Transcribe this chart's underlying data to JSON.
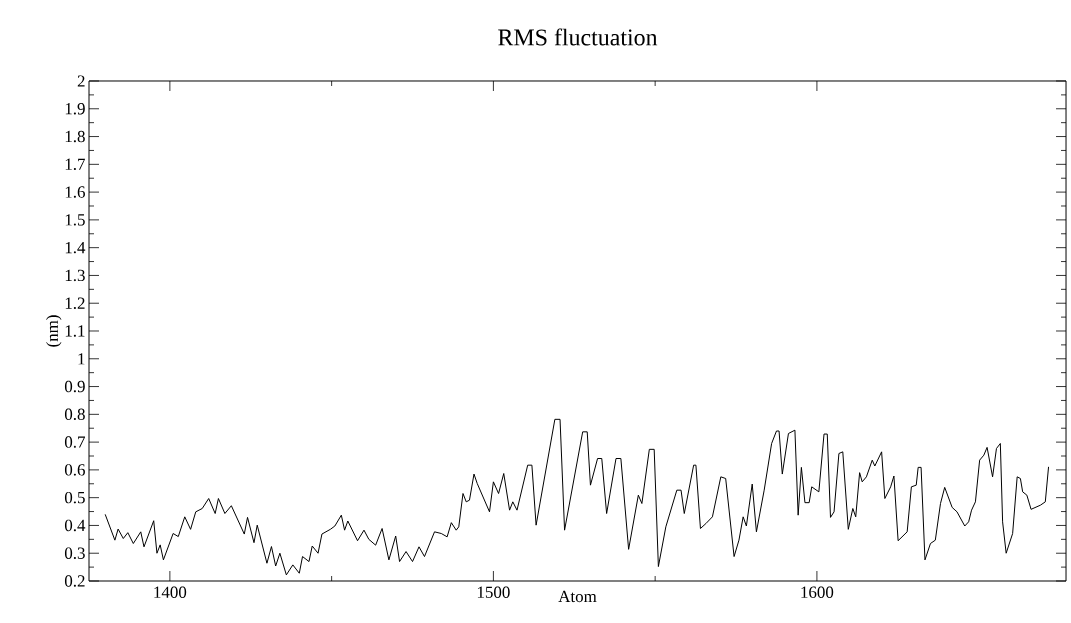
{
  "chart_data": {
    "type": "line",
    "title": "RMS fluctuation",
    "xlabel": "Atom",
    "ylabel": "(nm)",
    "color": "#000000",
    "marker": "none",
    "line_style": "solid",
    "grid": false,
    "xlim": [
      1375,
      1677
    ],
    "xticks": [
      1400,
      1500,
      1600
    ],
    "ylim": [
      0.2,
      2
    ],
    "yticks": [
      0.2,
      0.3,
      0.4,
      0.5,
      0.6,
      0.7,
      0.8,
      0.9,
      1,
      1.1,
      1.2,
      1.3,
      1.4,
      1.5,
      1.6,
      1.7,
      1.8,
      1.9,
      2
    ],
    "x": [
      1380,
      1383,
      1384,
      1385.6,
      1387,
      1388.7,
      1391,
      1392,
      1395,
      1396,
      1397,
      1398,
      1401,
      1402.6,
      1404.6,
      1406.4,
      1408,
      1410,
      1412,
      1414,
      1415,
      1417,
      1419,
      1423,
      1424,
      1426,
      1427,
      1430,
      1431.4,
      1432.7,
      1434,
      1436,
      1438,
      1440,
      1441,
      1443,
      1444,
      1445.8,
      1447,
      1449.6,
      1451,
      1453,
      1454,
      1455,
      1458,
      1460,
      1461.5,
      1463.6,
      1465.6,
      1467.7,
      1469.8,
      1471,
      1473,
      1475,
      1477,
      1478.7,
      1481.8,
      1483.9,
      1485.7,
      1487,
      1488.5,
      1489.3,
      1490.6,
      1491.6,
      1492.6,
      1494,
      1495,
      1498.8,
      1500,
      1501.6,
      1503.2,
      1505,
      1506,
      1507.3,
      1510.6,
      1511.9,
      1513.2,
      1519,
      1520.6,
      1522,
      1527.6,
      1529,
      1530,
      1532.2,
      1533.5,
      1535,
      1537.9,
      1539.4,
      1541.8,
      1544.8,
      1545.9,
      1548.2,
      1549.7,
      1551,
      1553.3,
      1556.7,
      1558,
      1559,
      1561.9,
      1562.6,
      1564,
      1565.7,
      1567.7,
      1570.3,
      1571.8,
      1574.4,
      1575.9,
      1577.2,
      1578.2,
      1580,
      1581.3,
      1583.7,
      1586,
      1587.5,
      1588.3,
      1589.3,
      1591.2,
      1593.2,
      1594.2,
      1595.2,
      1596.3,
      1597.6,
      1598.4,
      1600.6,
      1602.2,
      1603.2,
      1604.2,
      1605.3,
      1606.8,
      1608,
      1609.7,
      1611.1,
      1612,
      1613.2,
      1614,
      1615.3,
      1617.1,
      1617.9,
      1620,
      1621,
      1622.8,
      1623.8,
      1625.1,
      1627.9,
      1629.2,
      1630.7,
      1631.3,
      1632.2,
      1633.4,
      1635.1,
      1636.6,
      1638.2,
      1639.5,
      1641.8,
      1643.3,
      1645.7,
      1646.9,
      1647.8,
      1649,
      1650.3,
      1651.6,
      1652.6,
      1654.3,
      1655.5,
      1656.7,
      1657.4,
      1658.5,
      1660.5,
      1661.9,
      1662.9,
      1663.6,
      1664.9,
      1666.2,
      1669.1,
      1670.6,
      1671.6
    ],
    "values": [
      0.44,
      0.347,
      0.387,
      0.353,
      0.374,
      0.335,
      0.377,
      0.323,
      0.417,
      0.3,
      0.33,
      0.276,
      0.371,
      0.36,
      0.431,
      0.386,
      0.449,
      0.461,
      0.497,
      0.443,
      0.497,
      0.443,
      0.471,
      0.369,
      0.429,
      0.338,
      0.401,
      0.264,
      0.324,
      0.254,
      0.3,
      0.222,
      0.258,
      0.228,
      0.288,
      0.27,
      0.326,
      0.3,
      0.369,
      0.386,
      0.398,
      0.437,
      0.383,
      0.416,
      0.345,
      0.383,
      0.35,
      0.329,
      0.389,
      0.276,
      0.362,
      0.27,
      0.306,
      0.27,
      0.323,
      0.288,
      0.377,
      0.371,
      0.359,
      0.41,
      0.383,
      0.395,
      0.515,
      0.485,
      0.491,
      0.585,
      0.551,
      0.449,
      0.557,
      0.515,
      0.587,
      0.455,
      0.485,
      0.455,
      0.617,
      0.617,
      0.401,
      0.782,
      0.782,
      0.383,
      0.737,
      0.737,
      0.545,
      0.641,
      0.641,
      0.443,
      0.641,
      0.641,
      0.314,
      0.509,
      0.479,
      0.674,
      0.674,
      0.252,
      0.395,
      0.527,
      0.527,
      0.443,
      0.617,
      0.617,
      0.389,
      0.407,
      0.431,
      0.575,
      0.569,
      0.288,
      0.347,
      0.431,
      0.398,
      0.549,
      0.377,
      0.527,
      0.695,
      0.74,
      0.74,
      0.585,
      0.731,
      0.743,
      0.437,
      0.609,
      0.482,
      0.482,
      0.539,
      0.521,
      0.729,
      0.729,
      0.429,
      0.449,
      0.659,
      0.665,
      0.386,
      0.461,
      0.431,
      0.59,
      0.557,
      0.575,
      0.635,
      0.614,
      0.665,
      0.497,
      0.539,
      0.578,
      0.345,
      0.377,
      0.539,
      0.545,
      0.609,
      0.609,
      0.276,
      0.335,
      0.347,
      0.479,
      0.537,
      0.465,
      0.449,
      0.398,
      0.413,
      0.455,
      0.485,
      0.635,
      0.653,
      0.681,
      0.575,
      0.677,
      0.695,
      0.413,
      0.3,
      0.371,
      0.575,
      0.569,
      0.521,
      0.509,
      0.458,
      0.473,
      0.485,
      0.611
    ]
  }
}
